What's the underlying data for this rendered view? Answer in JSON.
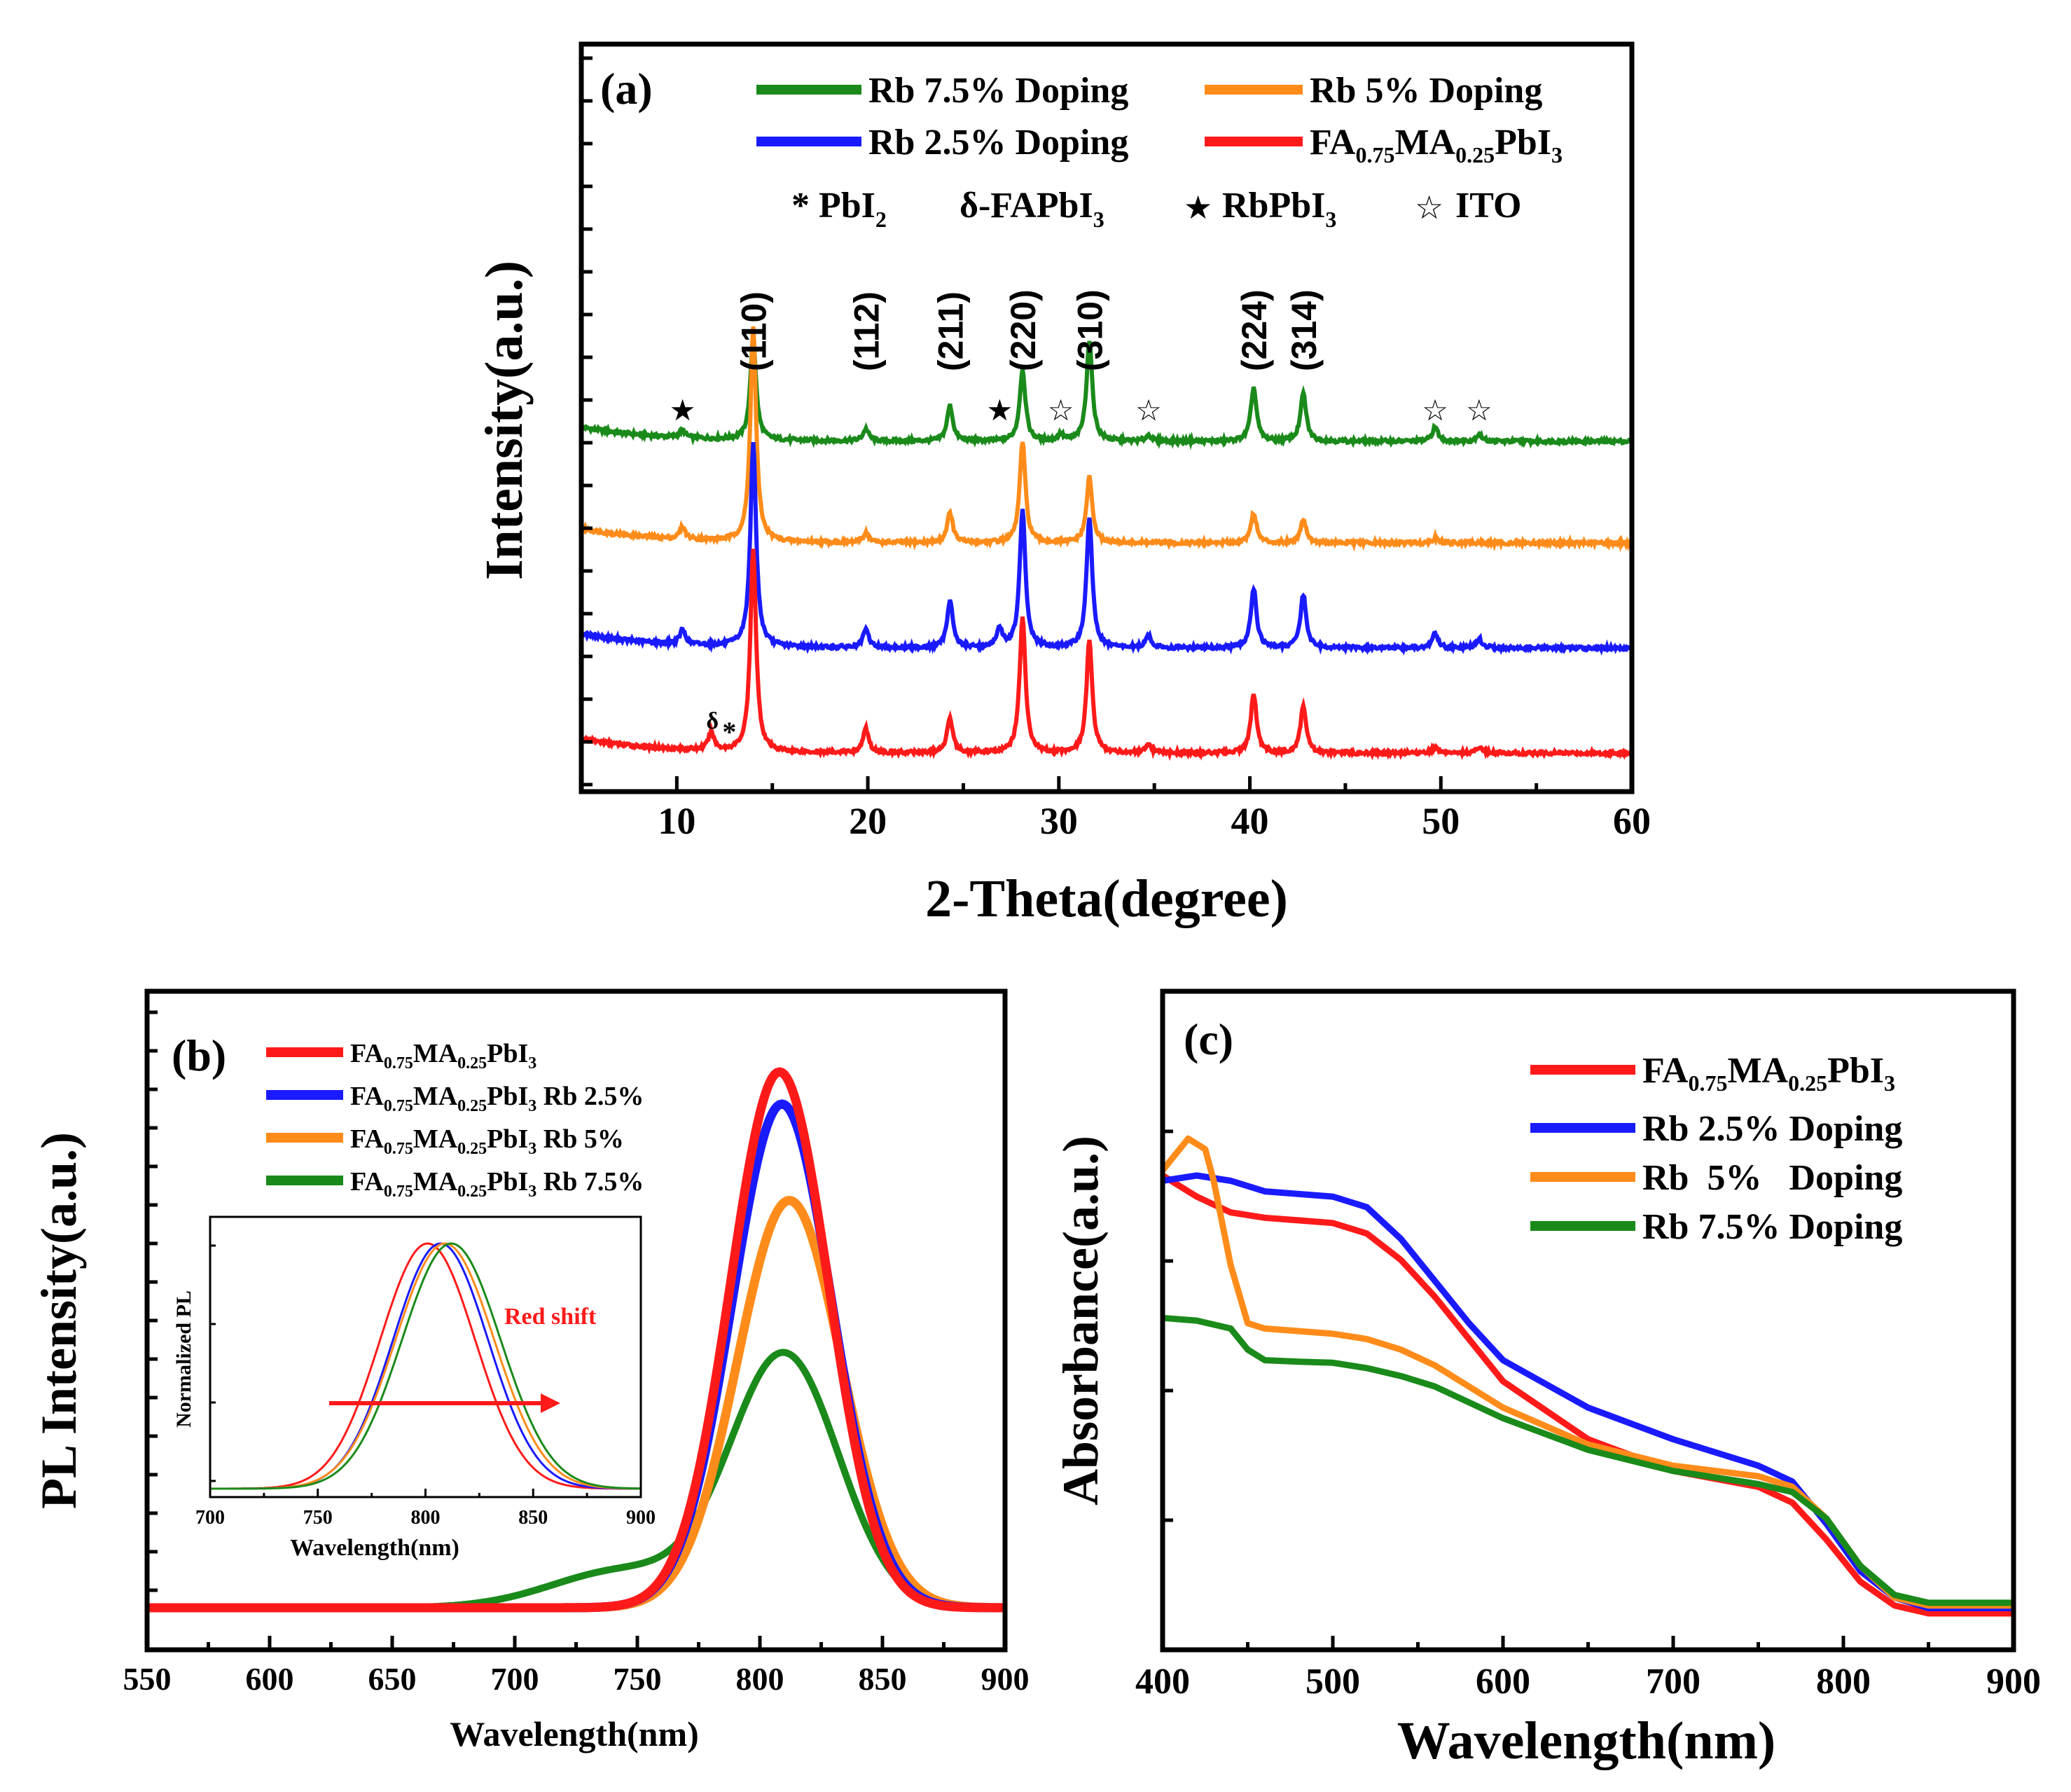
{
  "chart_data": [
    {
      "panel": "(a)",
      "type": "line",
      "xlabel": "2-Theta(degree)",
      "ylabel": "Intensity(a.u.)",
      "xlim": [
        5,
        60
      ],
      "xticks": [
        "10",
        "20",
        "30",
        "40",
        "50",
        "60"
      ],
      "legend": [
        {
          "name": "Rb 7.5% Doping",
          "color": "#1a8a1a"
        },
        {
          "name": "Rb 5% Doping",
          "color": "#ff8c1a"
        },
        {
          "name": "Rb 2.5% Doping",
          "color": "#1a1aff"
        },
        {
          "name_parts": [
            "FA",
            "0.75",
            "MA",
            "0.25",
            "PbI",
            "3"
          ],
          "color": "#ff1a1a"
        }
      ],
      "phase_legend": {
        "pbi2": [
          "* PbI",
          "2"
        ],
        "dfapbi": [
          "δ-FAPbI",
          "3"
        ],
        "rbpbi": [
          "RbPbI",
          "3"
        ],
        "ito": "ITO"
      },
      "peak_labels": [
        {
          "text": "(110)",
          "x": 14.0
        },
        {
          "text": "(112)",
          "x": 19.9
        },
        {
          "text": "(211)",
          "x": 24.3
        },
        {
          "text": "(220)",
          "x": 28.1
        },
        {
          "text": "(310)",
          "x": 31.6
        },
        {
          "text": "(224)",
          "x": 40.2
        },
        {
          "text": "(314)",
          "x": 42.8
        }
      ],
      "markers": [
        {
          "symbol": "★",
          "x": 10.3
        },
        {
          "symbol": "★",
          "x": 26.9
        },
        {
          "symbol": "☆",
          "x": 30.1
        },
        {
          "symbol": "☆",
          "x": 34.7
        },
        {
          "symbol": "☆",
          "x": 49.7
        },
        {
          "symbol": "☆",
          "x": 52.0
        }
      ],
      "delta_label": {
        "delta": "δ",
        "star": "*",
        "x": 12.2
      },
      "peaks_2theta": [
        10.3,
        11.8,
        14.0,
        19.9,
        24.3,
        26.9,
        28.1,
        30.1,
        31.6,
        34.7,
        40.2,
        42.8,
        49.7,
        52.0
      ],
      "series": [
        {
          "name": "Rb 7.5% Doping",
          "color": "#1a8a1a",
          "offset": 3,
          "peak_heights": [
            0.06,
            0.0,
            0.85,
            0.1,
            0.3,
            0.0,
            0.6,
            0.05,
            0.85,
            0.05,
            0.45,
            0.4,
            0.12,
            0.06
          ]
        },
        {
          "name": "Rb 5% Doping",
          "color": "#ff8c1a",
          "offset": 2,
          "peak_heights": [
            0.1,
            0.0,
            1.8,
            0.08,
            0.25,
            0.0,
            0.85,
            0.0,
            0.55,
            0.0,
            0.25,
            0.2,
            0.04,
            0.0
          ]
        },
        {
          "name": "Rb 2.5% Doping",
          "color": "#1a1aff",
          "offset": 1,
          "peak_heights": [
            0.12,
            0.0,
            1.7,
            0.15,
            0.4,
            0.15,
            1.15,
            0.0,
            1.1,
            0.1,
            0.5,
            0.45,
            0.12,
            0.08
          ]
        },
        {
          "name": "FA0.75MA0.25PbI3",
          "color": "#ff1a1a",
          "offset": 0,
          "peak_heights": [
            0.0,
            0.15,
            1.7,
            0.2,
            0.3,
            0.0,
            1.15,
            0.0,
            0.95,
            0.06,
            0.5,
            0.4,
            0.05,
            0.05
          ]
        }
      ]
    },
    {
      "panel": "(b)",
      "type": "line",
      "xlabel": "Wavelength(nm)",
      "ylabel": "PL Intensity(a.u.)",
      "xlim": [
        550,
        900
      ],
      "xticks": [
        "550",
        "600",
        "650",
        "700",
        "750",
        "800",
        "850",
        "900"
      ],
      "legend": [
        {
          "parts": [
            "FA",
            "0.75",
            "MA",
            "0.25",
            "PbI",
            "3",
            ""
          ],
          "color": "#ff1a1a"
        },
        {
          "parts": [
            "FA",
            "0.75",
            "MA",
            "0.25",
            "PbI",
            "3",
            " Rb 2.5%"
          ],
          "color": "#1a1aff"
        },
        {
          "parts": [
            "FA",
            "0.75",
            "MA",
            "0.25",
            "PbI",
            "3",
            " Rb 5%"
          ],
          "color": "#ff8c1a"
        },
        {
          "parts": [
            "FA",
            "0.75",
            "MA",
            "0.25",
            "PbI",
            "3",
            " Rb 7.5%"
          ],
          "color": "#1a8a1a"
        }
      ],
      "series": [
        {
          "name": "FA0.75MA0.25PbI3",
          "color": "#ff1a1a",
          "peak": 808,
          "fwhm": 47,
          "height": 1.0
        },
        {
          "name": "Rb 2.5%",
          "color": "#1a1aff",
          "peak": 809,
          "fwhm": 48,
          "height": 0.94
        },
        {
          "name": "Rb 5%",
          "color": "#ff8c1a",
          "peak": 812,
          "fwhm": 50,
          "height": 0.76
        },
        {
          "name": "Rb 7.5%",
          "color": "#1a8a1a",
          "peak": 810,
          "fwhm": 52,
          "height": 0.47,
          "shoulder": 745,
          "shoulder_height": 0.07
        }
      ],
      "inset": {
        "xlabel": "Wavelength(nm)",
        "ylabel": "Normalized PL",
        "xlim": [
          700,
          900
        ],
        "xticks": [
          "700",
          "750",
          "800",
          "850",
          "900"
        ],
        "annotation": "Red shift",
        "series": [
          {
            "color": "#ff1a1a",
            "peak": 801,
            "fwhm": 52
          },
          {
            "color": "#1a1aff",
            "peak": 807,
            "fwhm": 52
          },
          {
            "color": "#ff8c1a",
            "peak": 809,
            "fwhm": 54
          },
          {
            "color": "#1a8a1a",
            "peak": 812,
            "fwhm": 54
          }
        ]
      }
    },
    {
      "panel": "(c)",
      "type": "line",
      "xlabel": "Wavelength(nm)",
      "ylabel": "Absorbance(a.u.)",
      "xlim": [
        400,
        900
      ],
      "ylim": [
        0,
        1.1
      ],
      "xticks": [
        "400",
        "500",
        "600",
        "700",
        "800",
        "900"
      ],
      "legend": [
        {
          "parts": [
            "FA",
            "0.75",
            "MA",
            "0.25",
            "PbI",
            "3"
          ],
          "color": "#ff1a1a"
        },
        {
          "name": "Rb 2.5% Doping",
          "color": "#1a1aff"
        },
        {
          "name": "Rb  5%   Doping",
          "color": "#ff8c1a"
        },
        {
          "name": "Rb 7.5% Doping",
          "color": "#1a8a1a"
        }
      ],
      "series": [
        {
          "name": "FA0.75MA0.25PbI3",
          "color": "#ff1a1a",
          "x": [
            400,
            420,
            440,
            460,
            480,
            500,
            520,
            540,
            560,
            580,
            600,
            650,
            700,
            750,
            770,
            790,
            810,
            830,
            850,
            900
          ],
          "y": [
            0.83,
            0.79,
            0.76,
            0.75,
            0.745,
            0.74,
            0.72,
            0.67,
            0.6,
            0.52,
            0.44,
            0.33,
            0.27,
            0.24,
            0.21,
            0.14,
            0.06,
            0.015,
            0.0,
            0.0
          ]
        },
        {
          "name": "Rb 2.5% Doping",
          "color": "#1a1aff",
          "x": [
            400,
            420,
            440,
            460,
            480,
            500,
            520,
            540,
            560,
            580,
            600,
            650,
            700,
            750,
            770,
            790,
            810,
            830,
            850,
            900
          ],
          "y": [
            0.82,
            0.83,
            0.82,
            0.8,
            0.795,
            0.79,
            0.77,
            0.71,
            0.63,
            0.55,
            0.48,
            0.39,
            0.33,
            0.28,
            0.25,
            0.17,
            0.08,
            0.03,
            0.01,
            0.01
          ]
        },
        {
          "name": "Rb 5% Doping",
          "color": "#ff8c1a",
          "x": [
            400,
            410,
            415,
            420,
            425,
            430,
            440,
            450,
            460,
            480,
            500,
            520,
            540,
            560,
            580,
            600,
            650,
            700,
            750,
            770,
            790,
            810,
            830,
            850,
            900
          ],
          "y": [
            0.84,
            0.88,
            0.9,
            0.89,
            0.88,
            0.82,
            0.66,
            0.55,
            0.54,
            0.535,
            0.53,
            0.52,
            0.5,
            0.47,
            0.43,
            0.39,
            0.32,
            0.28,
            0.26,
            0.24,
            0.18,
            0.09,
            0.03,
            0.015,
            0.015
          ]
        },
        {
          "name": "Rb 7.5% Doping",
          "color": "#1a8a1a",
          "x": [
            400,
            420,
            440,
            450,
            460,
            480,
            500,
            520,
            540,
            560,
            580,
            600,
            650,
            700,
            750,
            770,
            790,
            810,
            830,
            850,
            900
          ],
          "y": [
            0.56,
            0.555,
            0.54,
            0.5,
            0.48,
            0.477,
            0.475,
            0.465,
            0.45,
            0.43,
            0.4,
            0.37,
            0.31,
            0.27,
            0.245,
            0.23,
            0.18,
            0.09,
            0.035,
            0.02,
            0.02
          ]
        }
      ]
    }
  ]
}
